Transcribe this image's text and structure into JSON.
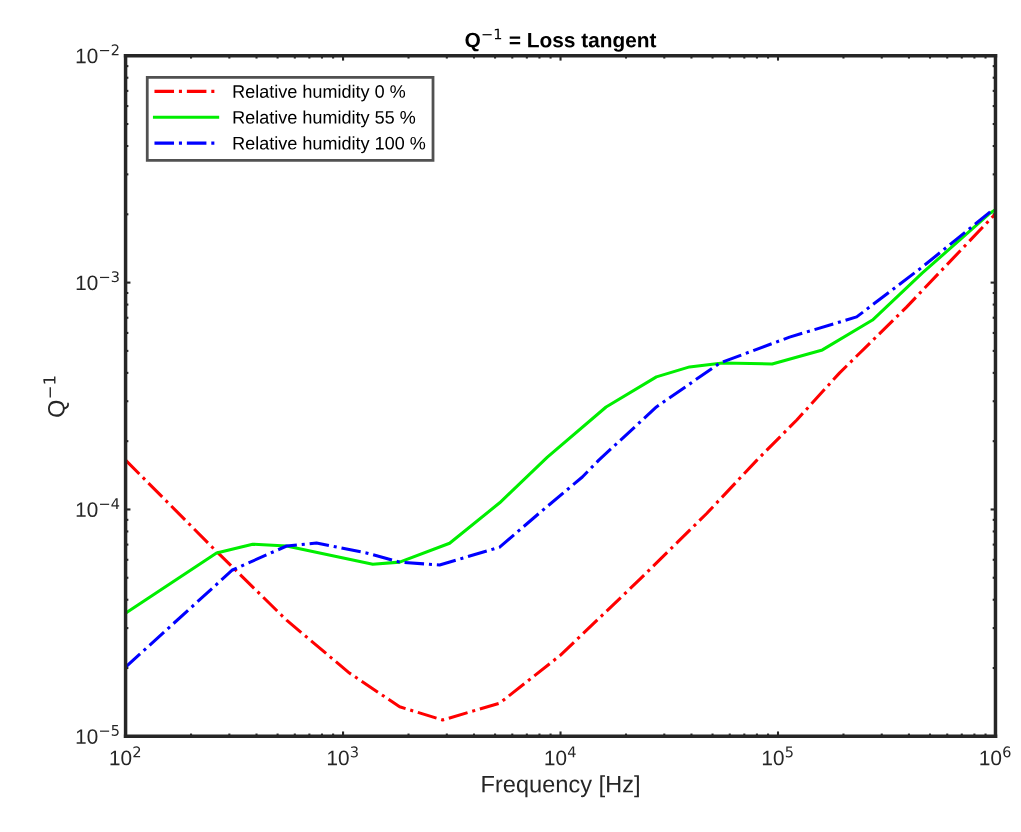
{
  "chart_data": {
    "type": "line",
    "title": "Q$^{−1}$ = Loss tangent",
    "xlabel": "Frequency [Hz]",
    "ylabel": "Q$^{−1}$",
    "log": "xy",
    "grid": false,
    "legend": "top left",
    "marker": "none",
    "xlim": [
      100,
      1000000
    ],
    "ylim": [
      1e-05,
      0.01
    ],
    "xticks": [
      {
        "value": 100,
        "label": "10$^{2}$"
      },
      {
        "value": 1000,
        "label": "10$^{3}$"
      },
      {
        "value": 10000,
        "label": "10$^{4}$"
      },
      {
        "value": 100000,
        "label": "10$^{5}$"
      },
      {
        "value": 1000000,
        "label": "10$^{6}$"
      }
    ],
    "yticks": [
      {
        "value": 1e-05,
        "label": "10$^{−5}$"
      },
      {
        "value": 0.0001,
        "label": "10$^{−4}$"
      },
      {
        "value": 0.001,
        "label": "10$^{−3}$"
      },
      {
        "value": 0.01,
        "label": "10$^{−2}$"
      }
    ],
    "series": [
      {
        "name": "Relative humidity 0 %",
        "color": "#ff0000",
        "line_style": "dashdot",
        "x": [
          100,
          251,
          550,
          1070,
          1820,
          2870,
          5250,
          10000,
          23000,
          47000,
          80000,
          122000,
          192000,
          390000,
          970000,
          1000000
        ],
        "values": [
          0.000165,
          6.8e-05,
          3.25e-05,
          1.9e-05,
          1.35e-05,
          1.18e-05,
          1.4e-05,
          2.28e-05,
          4.89e-05,
          9.6e-05,
          0.000165,
          0.000248,
          0.0004,
          0.00078,
          0.00195,
          0.002
        ]
      },
      {
        "name": "Relative humidity 55 %",
        "color": "#00ee00",
        "line_style": "solid",
        "x": [
          100,
          262,
          384,
          550,
          1370,
          1820,
          3090,
          5250,
          8700,
          16200,
          27600,
          39200,
          55600,
          94000,
          160000,
          272000,
          460000,
          930000,
          1000000
        ],
        "values": [
          3.49e-05,
          6.43e-05,
          7.03e-05,
          6.9e-05,
          5.74e-05,
          5.86e-05,
          7.1e-05,
          0.000107,
          0.00017,
          0.000283,
          0.000384,
          0.000425,
          0.000442,
          0.000438,
          0.000505,
          0.000684,
          0.0011,
          0.002,
          0.0021
        ]
      },
      {
        "name": "Relative humidity 100 %",
        "color": "#0000ff",
        "line_style": "dashdot",
        "x": [
          100,
          310,
          550,
          755,
          1280,
          1820,
          2780,
          5250,
          7950,
          12600,
          15000,
          27600,
          54000,
          113000,
          230000,
          460000,
          970000,
          1000000
        ],
        "values": [
          2.02e-05,
          5.41e-05,
          6.9e-05,
          7.11e-05,
          6.43e-05,
          5.86e-05,
          5.69e-05,
          6.82e-05,
          9.6e-05,
          0.000139,
          0.000165,
          0.000283,
          0.000442,
          0.000575,
          0.000706,
          0.00117,
          0.00209,
          0.0021
        ]
      }
    ]
  }
}
